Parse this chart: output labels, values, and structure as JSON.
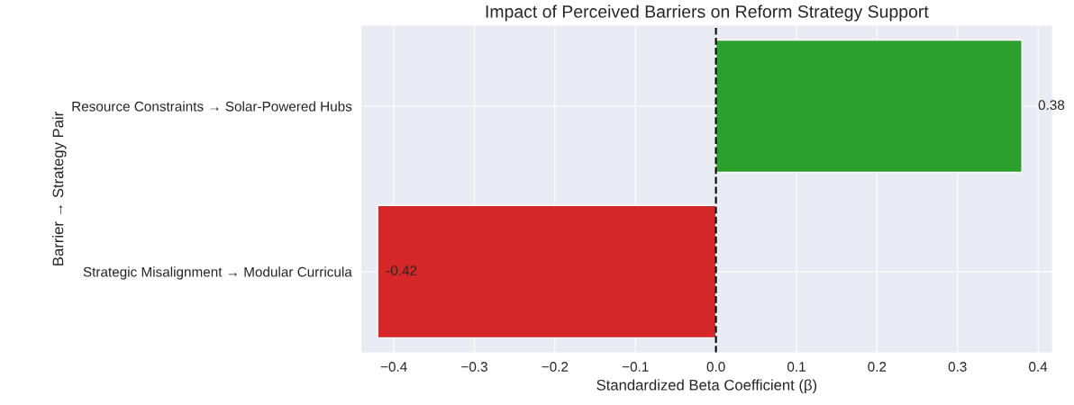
{
  "chart_data": {
    "type": "bar",
    "orientation": "horizontal",
    "title": "Impact of Perceived Barriers on Reform Strategy Support",
    "xlabel": "Standardized Beta Coefficient (β)",
    "ylabel": "Barrier → Strategy Pair",
    "categories": [
      "Resource Constraints → Solar-Powered Hubs",
      "Strategic Misalignment → Modular Curricula"
    ],
    "values": [
      0.38,
      -0.42
    ],
    "colors": [
      "#2ca02c",
      "#d62728"
    ],
    "data_labels": true,
    "xlim": [
      -0.441,
      0.418
    ],
    "xticks": [
      {
        "value": -0.4,
        "label": "−0.4"
      },
      {
        "value": -0.3,
        "label": "−0.3"
      },
      {
        "value": -0.2,
        "label": "−0.2"
      },
      {
        "value": -0.1,
        "label": "−0.1"
      },
      {
        "value": 0.0,
        "label": "0.0"
      },
      {
        "value": 0.1,
        "label": "0.1"
      },
      {
        "value": 0.2,
        "label": "0.2"
      },
      {
        "value": 0.3,
        "label": "0.3"
      },
      {
        "value": 0.4,
        "label": "0.4"
      }
    ],
    "ref_lines": [
      {
        "axis": "x",
        "value": 0,
        "color": "#000000",
        "line_style": "dashed"
      }
    ],
    "grid": true
  }
}
